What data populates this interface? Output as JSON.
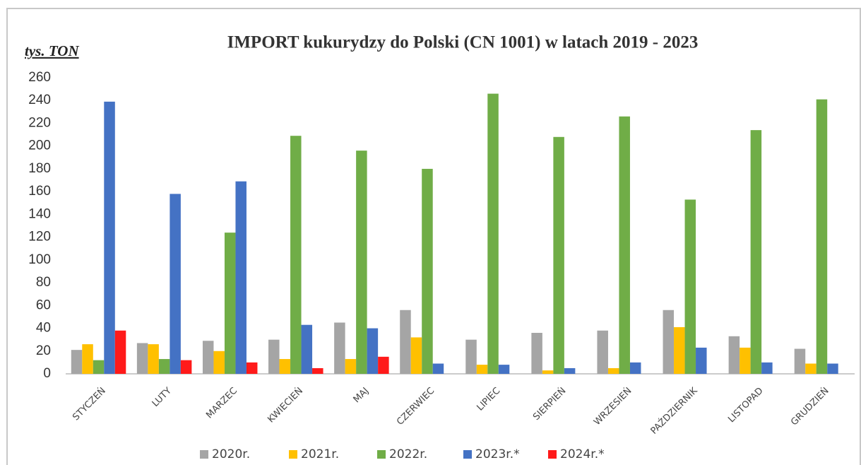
{
  "chart_data": {
    "type": "bar",
    "title": "IMPORT kukurydzy do Polski (CN 1001) w latach 2019 - 2023",
    "y_label": "tys. TON",
    "categories": [
      "STYCZEŃ",
      "LUTY",
      "MARZEC",
      "KWIECIEŃ",
      "MAJ",
      "CZERWIEC",
      "LIPIEC",
      "SIERPIEŃ",
      "WRZESIEŃ",
      "PAŹDZIERNIK",
      "LISTOPAD",
      "GRUDZIEŃ"
    ],
    "series": [
      {
        "name": "2020r.",
        "color": "#a5a5a5",
        "values": [
          21,
          27,
          29,
          30,
          45,
          56,
          30,
          36,
          38,
          56,
          33,
          22
        ]
      },
      {
        "name": "2021r.",
        "color": "#ffc000",
        "values": [
          26,
          26,
          20,
          13,
          13,
          32,
          8,
          3,
          5,
          41,
          23,
          9
        ]
      },
      {
        "name": "2022r.",
        "color": "#70ad47",
        "values": [
          12,
          13,
          124,
          209,
          196,
          180,
          246,
          208,
          226,
          153,
          214,
          241
        ]
      },
      {
        "name": "2023r.*",
        "color": "#4472c4",
        "values": [
          239,
          158,
          169,
          43,
          40,
          9,
          8,
          5,
          10,
          23,
          10,
          9
        ]
      },
      {
        "name": "2024r.*",
        "color": "#ff1a1a",
        "values": [
          38,
          12,
          10,
          5,
          15,
          null,
          null,
          null,
          null,
          null,
          null,
          null
        ]
      }
    ],
    "ylim": [
      0,
      260
    ],
    "yticks": [
      0,
      20,
      40,
      60,
      80,
      100,
      120,
      140,
      160,
      180,
      200,
      220,
      240,
      260
    ],
    "grid": false,
    "legend": "bottom"
  }
}
